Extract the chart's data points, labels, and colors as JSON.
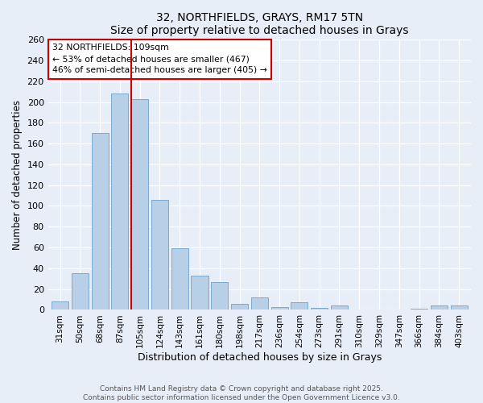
{
  "title": "32, NORTHFIELDS, GRAYS, RM17 5TN",
  "subtitle": "Size of property relative to detached houses in Grays",
  "xlabel": "Distribution of detached houses by size in Grays",
  "ylabel": "Number of detached properties",
  "categories": [
    "31sqm",
    "50sqm",
    "68sqm",
    "87sqm",
    "105sqm",
    "124sqm",
    "143sqm",
    "161sqm",
    "180sqm",
    "198sqm",
    "217sqm",
    "236sqm",
    "254sqm",
    "273sqm",
    "291sqm",
    "310sqm",
    "329sqm",
    "347sqm",
    "366sqm",
    "384sqm",
    "403sqm"
  ],
  "values": [
    8,
    35,
    170,
    208,
    203,
    106,
    59,
    33,
    27,
    6,
    12,
    3,
    7,
    2,
    4,
    0,
    0,
    0,
    1,
    4,
    4
  ],
  "highlight_index": 4,
  "highlight_color": "#cc0000",
  "bar_color": "#b8cfe8",
  "bar_edge_color": "#7aaad0",
  "bg_color": "#e8eef8",
  "ylim": [
    0,
    260
  ],
  "yticks": [
    0,
    20,
    40,
    60,
    80,
    100,
    120,
    140,
    160,
    180,
    200,
    220,
    240,
    260
  ],
  "annotation_title": "32 NORTHFIELDS: 109sqm",
  "annotation_line1": "← 53% of detached houses are smaller (467)",
  "annotation_line2": "46% of semi-detached houses are larger (405) →",
  "footer1": "Contains HM Land Registry data © Crown copyright and database right 2025.",
  "footer2": "Contains public sector information licensed under the Open Government Licence v3.0."
}
